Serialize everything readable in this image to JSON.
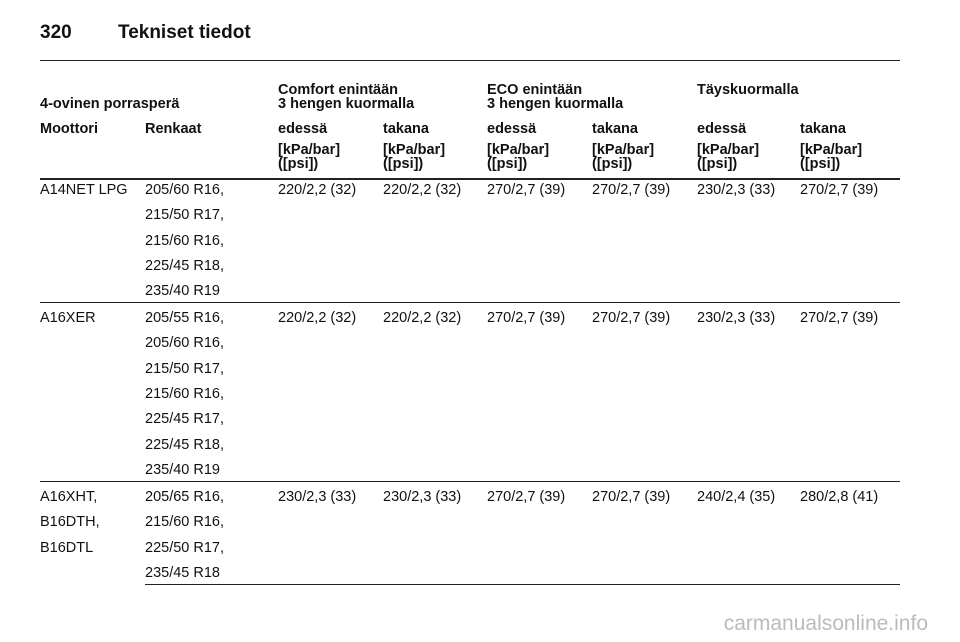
{
  "header": {
    "page_number": "320",
    "title": "Tekniset tiedot"
  },
  "table": {
    "caption": "4-ovinen porrasperä",
    "groups": [
      [
        "Comfort enintään",
        "3 hengen kuormalla"
      ],
      [
        "ECO enintään",
        "3 hengen kuormalla"
      ],
      [
        "Täyskuormalla"
      ]
    ],
    "columns": [
      "Moottori",
      "Renkaat",
      "edessä",
      "takana",
      "edessä",
      "takana",
      "edessä",
      "takana"
    ],
    "units": [
      [
        "[kPa/bar]",
        "([psi])"
      ],
      [
        "[kPa/bar]",
        "([psi])"
      ],
      [
        "[kPa/bar]",
        "([psi])"
      ],
      [
        "[kPa/bar]",
        "([psi])"
      ],
      [
        "[kPa/bar]",
        "([psi])"
      ],
      [
        "[kPa/bar]",
        "([psi])"
      ]
    ],
    "rows": [
      {
        "engine": [
          "A14NET LPG"
        ],
        "tires": [
          "205/60 R16,",
          "215/50 R17,",
          "215/60 R16,",
          "225/45 R18,",
          "235/40 R19"
        ],
        "values": [
          "220/2,2 (32)",
          "220/2,2 (32)",
          "270/2,7 (39)",
          "270/2,7 (39)",
          "230/2,3 (33)",
          "270/2,7 (39)"
        ]
      },
      {
        "engine": [
          "A16XER"
        ],
        "tires": [
          "205/55 R16,",
          "205/60 R16,",
          "215/50 R17,",
          "215/60 R16,",
          "225/45 R17,",
          "225/45 R18,",
          "235/40 R19"
        ],
        "values": [
          "220/2,2 (32)",
          "220/2,2 (32)",
          "270/2,7 (39)",
          "270/2,7 (39)",
          "230/2,3 (33)",
          "270/2,7 (39)"
        ]
      },
      {
        "engine": [
          "A16XHT,",
          "B16DTH,",
          "B16DTL"
        ],
        "tires": [
          "205/65 R16,",
          "215/60 R16,",
          "225/50 R17,",
          "235/45 R18"
        ],
        "values": [
          "230/2,3 (33)",
          "230/2,3 (33)",
          "270/2,7 (39)",
          "270/2,7 (39)",
          "240/2,4 (35)",
          "280/2,8 (41)"
        ]
      }
    ]
  },
  "footer": {
    "watermark": "carmanualsonline.info"
  }
}
